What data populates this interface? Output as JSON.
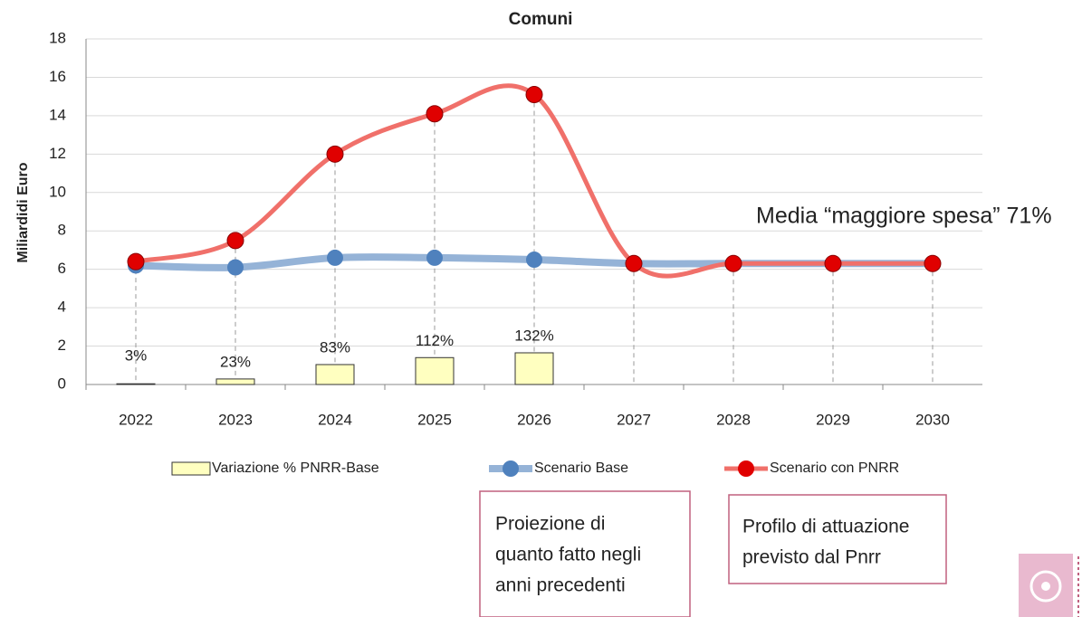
{
  "chart_data": {
    "type": "line",
    "title": "Comuni",
    "y_label": "Miliardidi Euro",
    "categories": [
      "2022",
      "2023",
      "2024",
      "2025",
      "2026",
      "2027",
      "2028",
      "2029",
      "2030"
    ],
    "ylim": [
      0,
      18
    ],
    "yticks": [
      0,
      2,
      4,
      6,
      8,
      10,
      12,
      14,
      16,
      18
    ],
    "y2lim": [
      0,
      1440
    ],
    "grid": true,
    "series": [
      {
        "name": "Variazione % PNRR-Base",
        "type": "bar",
        "axis": "y2",
        "color": "#ffffc0",
        "values": [
          3,
          23,
          83,
          112,
          132,
          null,
          null,
          null,
          null
        ],
        "value_labels": [
          "3%",
          "23%",
          "83%",
          "112%",
          "132%",
          null,
          null,
          null,
          null
        ]
      },
      {
        "name": "Scenario Base",
        "type": "line",
        "color": "#95b3d7",
        "marker_color": "#4f81bd",
        "values": [
          6.2,
          6.1,
          6.6,
          6.6,
          6.5,
          6.3,
          6.3,
          6.3,
          6.3
        ]
      },
      {
        "name": "Scenario con PNRR",
        "type": "line",
        "color": "#f0706a",
        "marker_color": "#e00000",
        "values": [
          6.4,
          7.5,
          12.0,
          14.1,
          15.1,
          6.3,
          6.3,
          6.3,
          6.3
        ]
      }
    ],
    "annotation": "Media “maggiore spesa” 71%",
    "notes": [
      [
        "Proiezione di",
        "quanto fatto negli",
        "anni precedenti"
      ],
      [
        "Profilo di attuazione",
        "previsto dal Pnrr"
      ]
    ]
  }
}
